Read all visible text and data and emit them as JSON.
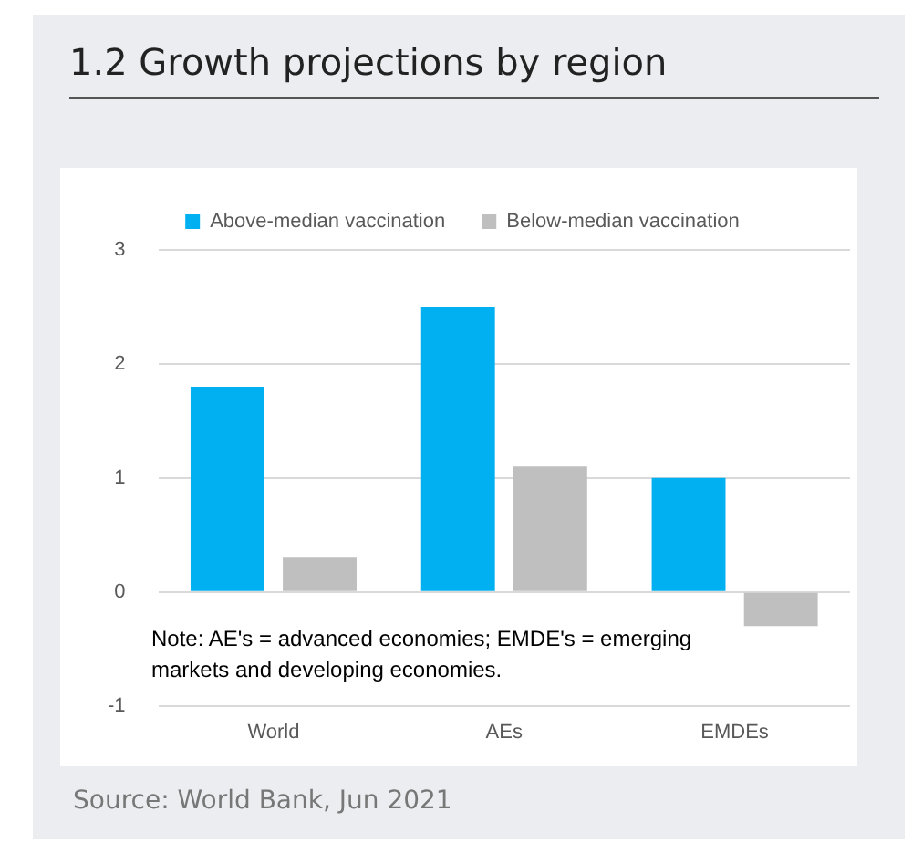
{
  "chart_data": {
    "type": "bar",
    "title": "1.2 Growth projections by region",
    "categories": [
      "World",
      "AEs",
      "EMDEs"
    ],
    "series": [
      {
        "name": "Above-median vaccination",
        "color": "#00b0f0",
        "values": [
          1.8,
          2.5,
          1.0
        ]
      },
      {
        "name": "Below-median vaccination",
        "color": "#bfbfbf",
        "values": [
          0.3,
          1.1,
          -0.3
        ]
      }
    ],
    "ylim": [
      -1,
      3
    ],
    "yticks": [
      -1,
      0,
      1,
      2,
      3
    ],
    "grid": "y",
    "legend": "top",
    "annotations": [
      "Note: AE's = advanced economies; EMDE's = emerging\nmarkets and developing economies.",
      "Source: World Bank, Jun 2021"
    ]
  }
}
